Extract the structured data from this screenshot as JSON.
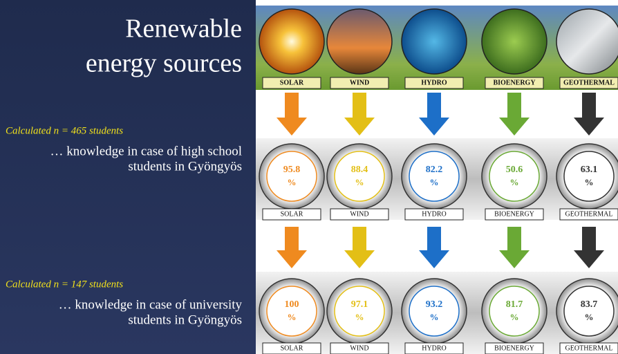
{
  "title": [
    "Renewable",
    "energy sources"
  ],
  "sources": [
    "SOLAR",
    "WIND",
    "HYDRO",
    "BIOENERGY",
    "GEOTHERMAL"
  ],
  "colors": [
    "#ef8a1f",
    "#e3bf16",
    "#1d6fc8",
    "#6aa935",
    "#333333"
  ],
  "unit": "%",
  "groups": [
    {
      "sample": "Calculated n = 465 students",
      "description": [
        "… knowledge in case of high school",
        "students in Gyöngyös"
      ],
      "values": [
        95.8,
        88.4,
        82.2,
        50.6,
        63.1
      ]
    },
    {
      "sample": "Calculated n = 147 students",
      "description": [
        "… knowledge in case of university",
        "students in Gyöngyös"
      ],
      "values": [
        100,
        97.1,
        93.2,
        81.7,
        83.7
      ]
    }
  ]
}
